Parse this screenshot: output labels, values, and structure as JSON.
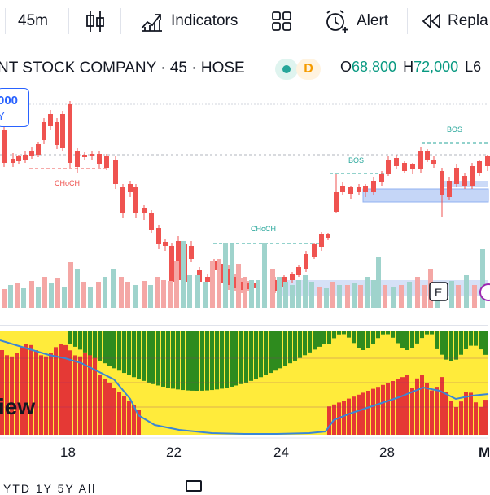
{
  "toolbar": {
    "interval": "45m",
    "indicators_label": "Indicators",
    "alert_label": "Alert",
    "replay_label": "Repla"
  },
  "symbol": {
    "title": "NT STOCK COMPANY · 45 · HOSE",
    "interval_badge": "D",
    "open_key": "O",
    "open_value": "68,800",
    "high_key": "H",
    "high_value": "72,000",
    "low_key": "L6"
  },
  "price_tag": {
    "price": "000",
    "side": "Y"
  },
  "annotations": {
    "choch_left": "CHoCH",
    "choch_mid": "CHoCH",
    "bos_1": "BOS",
    "bos_2": "BOS",
    "event_marker": "E"
  },
  "watermark": "iew",
  "x_axis_labels": [
    "18",
    "22",
    "24",
    "28",
    "M"
  ],
  "bottom_bar_text": "YTD 1Y 5Y All",
  "colors": {
    "up": "#26a69a",
    "down": "#ef5350",
    "vol_up": "#9fd3cc",
    "vol_down": "#f4a7a5",
    "osc_red": "#e53935",
    "osc_yellow": "#ffeb3b",
    "osc_green": "#2e8b1e",
    "osc_line": "#3a86d6",
    "zone": "#c5d6f7"
  },
  "icons": [
    "candles-icon",
    "indicators-icon",
    "layouts-icon",
    "alert-clock-icon",
    "replay-icon",
    "calendar-icon"
  ]
}
